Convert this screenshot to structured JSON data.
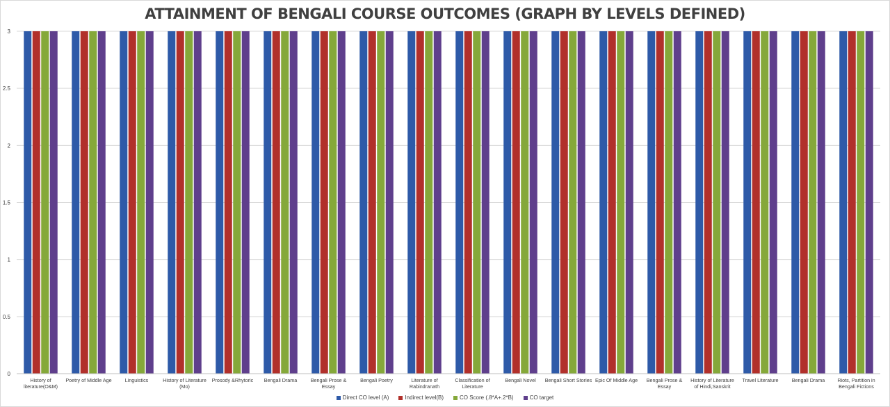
{
  "chart_data": {
    "type": "bar",
    "title": "ATTAINMENT OF BENGALI COURSE OUTCOMES (GRAPH BY LEVELS DEFINED)",
    "xlabel": "",
    "ylabel": "",
    "ylim": [
      0,
      3
    ],
    "yticks": [
      "0",
      "0.5",
      "1",
      "1.5",
      "2",
      "2.5",
      "3"
    ],
    "grid": true,
    "legend_position": "bottom",
    "categories": [
      [
        "History of",
        "literature(O&M)"
      ],
      [
        "Poetry of Middle Age"
      ],
      [
        "Linguistics"
      ],
      [
        "History of Literature",
        "(Mo)"
      ],
      [
        "Prosody &Rhytoric"
      ],
      [
        "Bengali Drama"
      ],
      [
        "Bengali Prose &",
        "Essay"
      ],
      [
        "Bengali Poetry"
      ],
      [
        "Literature of",
        "Rabindranath"
      ],
      [
        "Classification of",
        "Literature"
      ],
      [
        "Bengali Novel"
      ],
      [
        "Bengali Short Stories"
      ],
      [
        "Epic Of Middle Age"
      ],
      [
        "Bengali Prose &",
        "Essay"
      ],
      [
        "History of Literature",
        "of Hindi,Sanskrit"
      ],
      [
        "Travel Literature"
      ],
      [
        "Bengali Drama"
      ],
      [
        "Riots, Partition in",
        "Bengali Fictions"
      ]
    ],
    "series": [
      {
        "name": "Direct CO level (A)",
        "color": "#2e5aa8",
        "values": [
          3,
          3,
          3,
          3,
          3,
          3,
          3,
          3,
          3,
          3,
          3,
          3,
          3,
          3,
          3,
          3,
          3,
          3
        ]
      },
      {
        "name": "Indirect level(B)",
        "color": "#b1302b",
        "values": [
          3,
          3,
          3,
          3,
          3,
          3,
          3,
          3,
          3,
          3,
          3,
          3,
          3,
          3,
          3,
          3,
          3,
          3
        ]
      },
      {
        "name": "CO Score (.8*A+.2*B)",
        "color": "#85a83a",
        "values": [
          3,
          3,
          3,
          3,
          3,
          3,
          3,
          3,
          3,
          3,
          3,
          3,
          3,
          3,
          3,
          3,
          3,
          3
        ]
      },
      {
        "name": "CO target",
        "color": "#5f3f8c",
        "values": [
          3,
          3,
          3,
          3,
          3,
          3,
          3,
          3,
          3,
          3,
          3,
          3,
          3,
          3,
          3,
          3,
          3,
          3
        ]
      }
    ]
  }
}
